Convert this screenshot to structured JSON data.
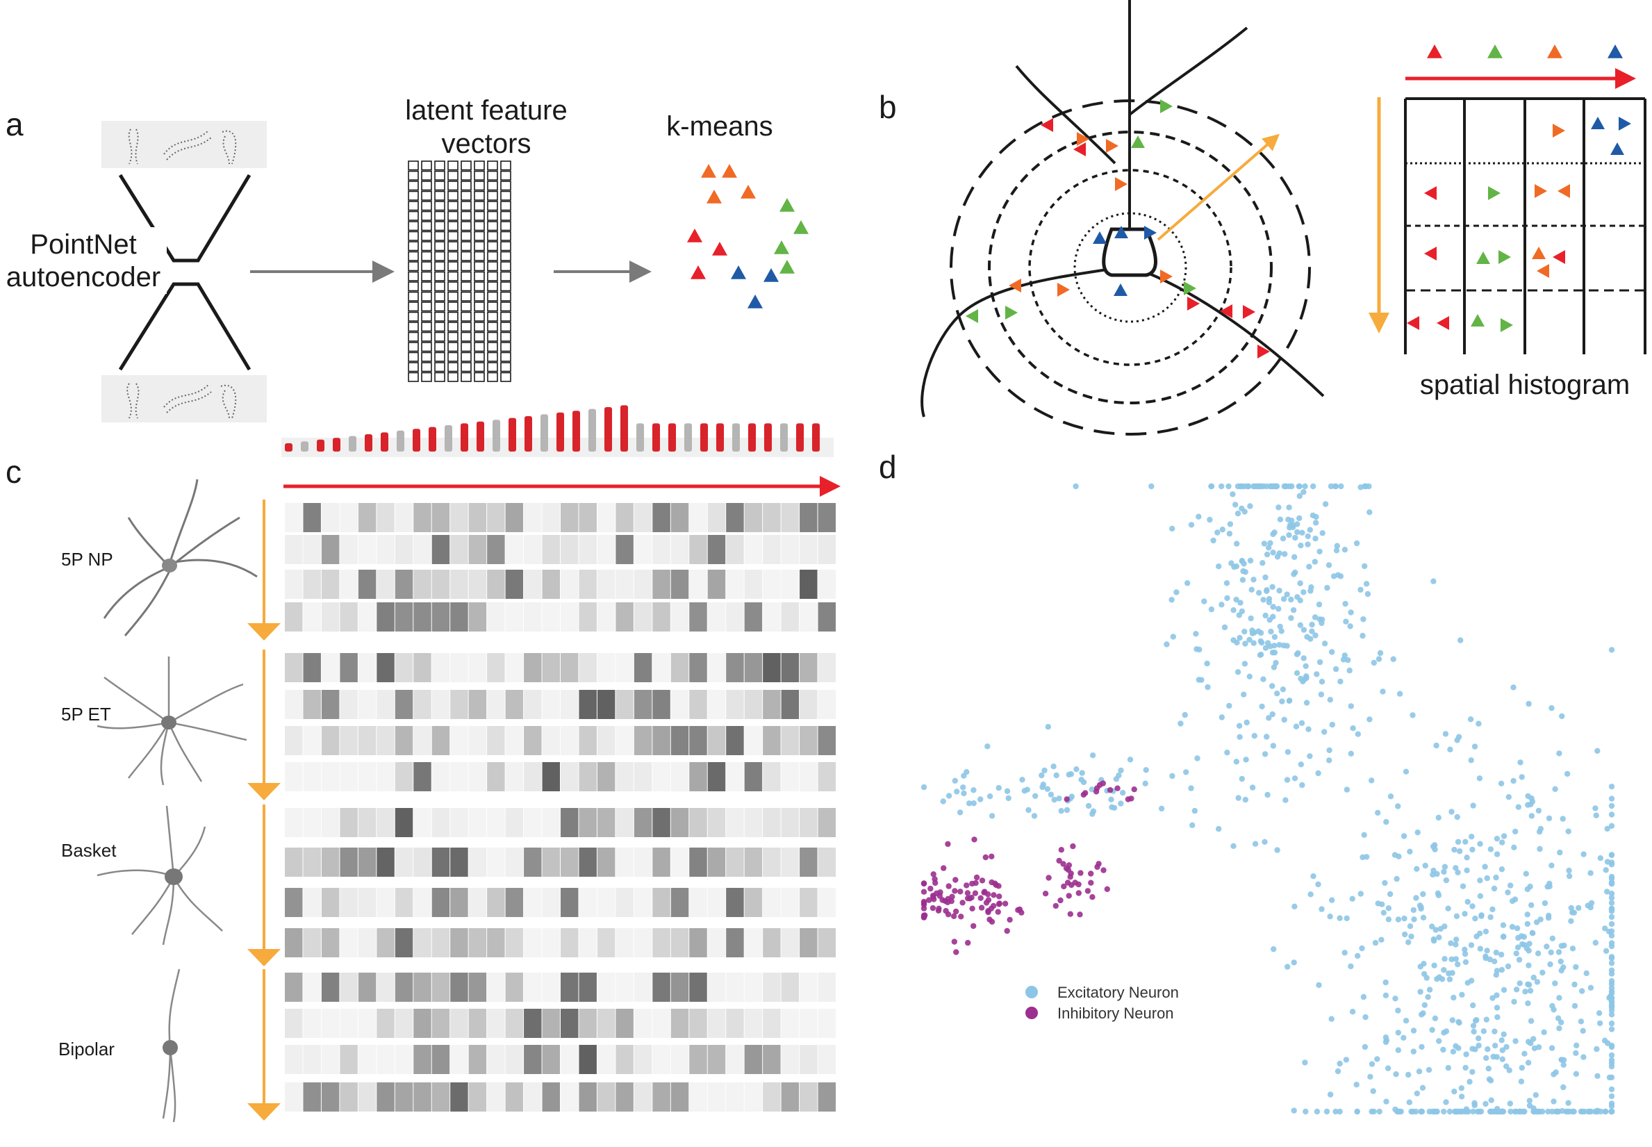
{
  "figure": {
    "panels": [
      {
        "letter": "a"
      },
      {
        "letter": "b"
      },
      {
        "letter": "c"
      },
      {
        "letter": "d"
      }
    ],
    "panel_a": {
      "encoder_label_1": "PointNet",
      "encoder_label_2": "autoencoder",
      "latent_label_1": "latent feature",
      "latent_label_2": "vectors",
      "kmeans_label": "k-means"
    },
    "panel_b": {
      "histogram_label": "spatial histogram"
    },
    "panel_c": {
      "neuron_types": [
        "5P NP",
        "5P ET",
        "Basket",
        "Bipolar"
      ],
      "heatmap_columns": 30,
      "rows_per_type": 4
    },
    "colors": {
      "red": "#e8202a",
      "green": "#62b446",
      "orange": "#f06a25",
      "blue": "#1f5aa7",
      "arrow_red": "#e8202a",
      "arrow_orange": "#f6ab3c",
      "excitatory": "#8dc5e6",
      "inhibitory": "#9c2f8f",
      "gray_arrow": "#7a7a7a"
    }
  },
  "chart_data": {
    "type": "scatter",
    "title": "",
    "xlabel": "",
    "ylabel": "",
    "series": [
      {
        "name": "Excitatory Neuron",
        "clusters": [
          {
            "cx": 0.52,
            "cy": 0.18,
            "sx": 0.07,
            "sy": 0.16,
            "n": 320
          },
          {
            "cx": 0.18,
            "cy": 0.48,
            "sx": 0.09,
            "sy": 0.03,
            "n": 70
          },
          {
            "cx": 0.83,
            "cy": 0.8,
            "sx": 0.13,
            "sy": 0.2,
            "n": 620
          }
        ]
      },
      {
        "name": "Inhibitory Neuron",
        "clusters": [
          {
            "cx": 0.06,
            "cy": 0.66,
            "sx": 0.04,
            "sy": 0.03,
            "n": 90
          },
          {
            "cx": 0.22,
            "cy": 0.63,
            "sx": 0.02,
            "sy": 0.025,
            "n": 30
          },
          {
            "cx": 0.27,
            "cy": 0.49,
            "sx": 0.03,
            "sy": 0.01,
            "n": 12
          }
        ]
      }
    ],
    "legend_position": "bottom-left",
    "grid": false
  }
}
